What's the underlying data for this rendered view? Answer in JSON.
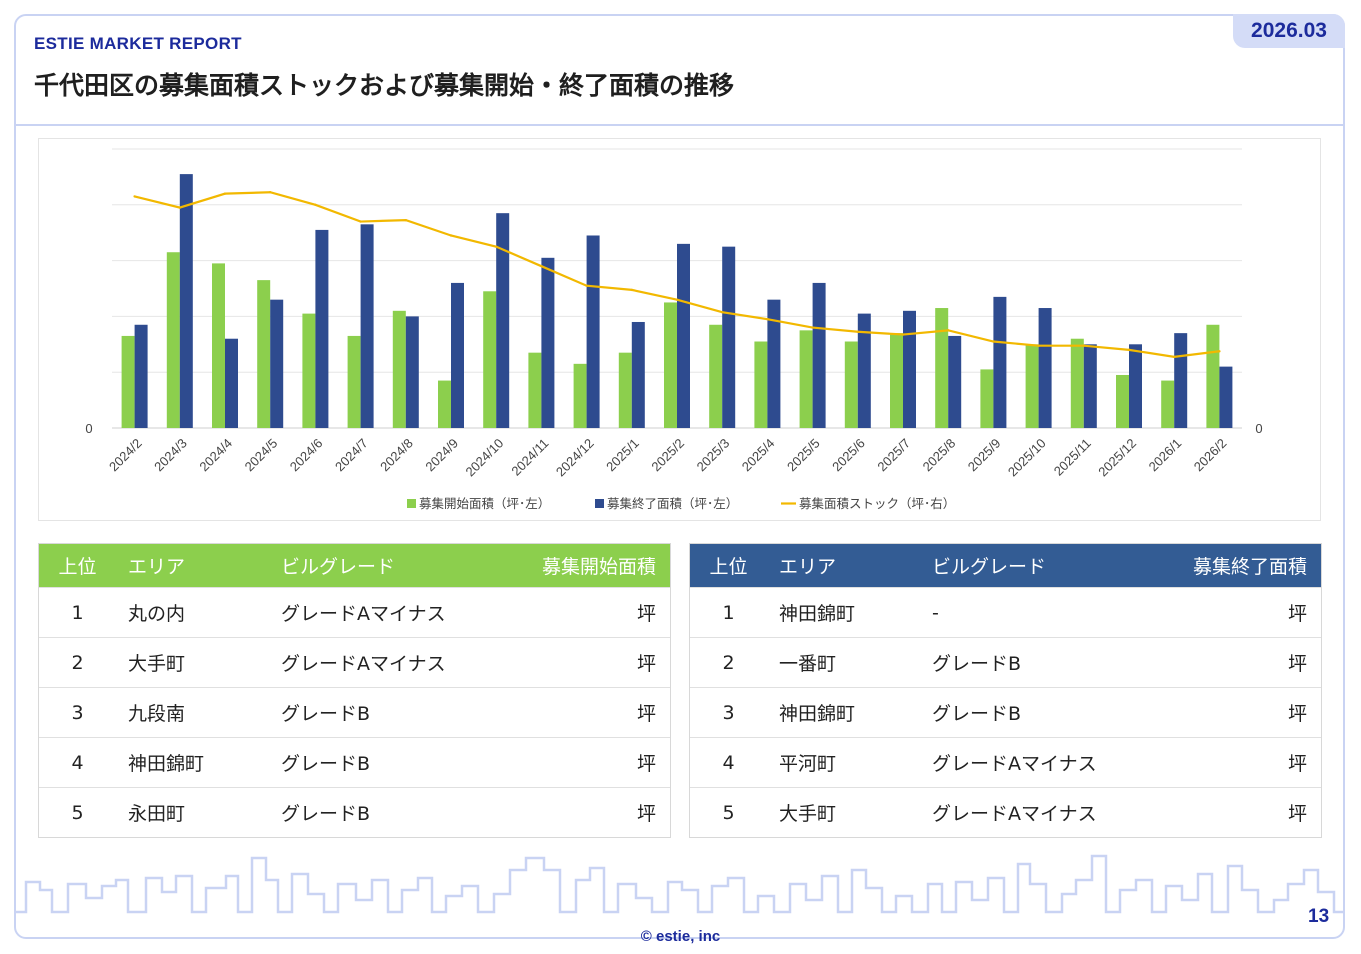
{
  "header": {
    "brand": "ESTIE MARKET REPORT",
    "date_badge": "2026.03",
    "title": "千代田区の募集面積ストックおよび募集開始・終了面積の推移"
  },
  "colors": {
    "accent": "#1c2b9c",
    "start_series": "#8ccf4d",
    "end_series": "#2e4b8f",
    "stock_series": "#f2b800",
    "left_table_header": "#8ccf4d",
    "right_table_header": "#335c94",
    "frame": "#c9d3f3"
  },
  "chart_data": {
    "type": "bar",
    "categories": [
      "2024/2",
      "2024/3",
      "2024/4",
      "2024/5",
      "2024/6",
      "2024/7",
      "2024/8",
      "2024/9",
      "2024/10",
      "2024/11",
      "2024/12",
      "2025/1",
      "2025/2",
      "2025/3",
      "2025/4",
      "2025/5",
      "2025/6",
      "2025/7",
      "2025/8",
      "2025/9",
      "2025/10",
      "2025/11",
      "2025/12",
      "2026/1",
      "2026/2"
    ],
    "series": [
      {
        "name": "募集開始面積（坪･左）",
        "type": "bar",
        "axis": "left",
        "values": [
          33,
          63,
          59,
          53,
          41,
          33,
          42,
          17,
          49,
          27,
          23,
          27,
          45,
          37,
          31,
          35,
          31,
          34,
          43,
          21,
          30,
          32,
          19,
          17,
          37
        ]
      },
      {
        "name": "募集終了面積（坪･左）",
        "type": "bar",
        "axis": "left",
        "values": [
          37,
          91,
          32,
          46,
          71,
          73,
          40,
          52,
          77,
          61,
          69,
          38,
          66,
          65,
          46,
          52,
          41,
          42,
          33,
          47,
          43,
          30,
          30,
          34,
          22
        ]
      },
      {
        "name": "募集面積ストック（坪･右）",
        "type": "line",
        "axis": "right",
        "values": [
          83,
          79,
          84,
          84.5,
          80,
          74,
          74.5,
          69,
          65,
          58,
          51,
          49.5,
          46,
          41.5,
          39,
          36,
          34.5,
          33.5,
          35,
          31,
          29.5,
          29.5,
          28,
          25.5,
          27.5
        ]
      }
    ],
    "y_left": {
      "min": 0,
      "tick_label": "0",
      "gridlines": 5
    },
    "y_right": {
      "min": 0,
      "tick_label": "0"
    },
    "grid": true,
    "legend_position": "bottom"
  },
  "tables": {
    "start": {
      "headers": [
        "上位",
        "エリア",
        "ビルグレード",
        "募集開始面積"
      ],
      "rows": [
        {
          "rank": "1",
          "area": "丸の内",
          "grade": "グレードAマイナス",
          "unit": "坪"
        },
        {
          "rank": "2",
          "area": "大手町",
          "grade": "グレードAマイナス",
          "unit": "坪"
        },
        {
          "rank": "3",
          "area": "九段南",
          "grade": "グレードB",
          "unit": "坪"
        },
        {
          "rank": "4",
          "area": "神田錦町",
          "grade": "グレードB",
          "unit": "坪"
        },
        {
          "rank": "5",
          "area": "永田町",
          "grade": "グレードB",
          "unit": "坪"
        }
      ]
    },
    "end": {
      "headers": [
        "上位",
        "エリア",
        "ビルグレード",
        "募集終了面積"
      ],
      "rows": [
        {
          "rank": "1",
          "area": "神田錦町",
          "grade": "-",
          "unit": "坪"
        },
        {
          "rank": "2",
          "area": "一番町",
          "grade": "グレードB",
          "unit": "坪"
        },
        {
          "rank": "3",
          "area": "神田錦町",
          "grade": "グレードB",
          "unit": "坪"
        },
        {
          "rank": "4",
          "area": "平河町",
          "grade": "グレードAマイナス",
          "unit": "坪"
        },
        {
          "rank": "5",
          "area": "大手町",
          "grade": "グレードAマイナス",
          "unit": "坪"
        }
      ]
    }
  },
  "footer": {
    "page_number": "13",
    "copyright": "© estie, inc"
  }
}
